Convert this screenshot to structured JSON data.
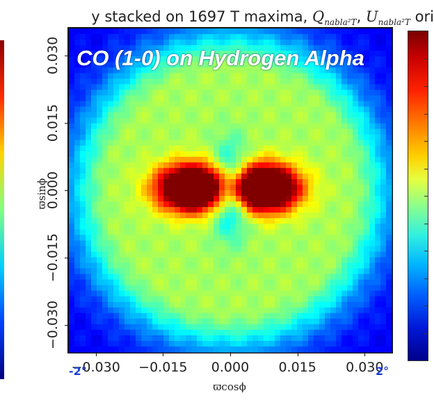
{
  "header": {
    "title_prefix": "y stacked on 1697 T maxima, ",
    "q_main": "Q",
    "q_sub": "nabla²T",
    "sep": ", ",
    "u_main": "U",
    "u_sub": "nabla²T",
    "title_suffix": " ori"
  },
  "overlay_title": "CO (1-0) on Hydrogen Alpha",
  "corner_labels": {
    "left": "-2°",
    "right": "2°"
  },
  "chart_data": {
    "type": "heatmap",
    "title": "y stacked on 1697 T maxima, Q_nabla²T, U_nabla²T ori",
    "xlabel": "ϖcosϕ",
    "ylabel": "ϖsinϕ",
    "xlim": [
      -0.036,
      0.036
    ],
    "ylim": [
      -0.036,
      0.036
    ],
    "xticks": [
      -0.03,
      -0.015,
      0.0,
      0.015,
      0.03
    ],
    "xtick_labels": [
      "−0.030",
      "−0.015",
      "0.000",
      "0.015",
      "0.030"
    ],
    "yticks": [
      -0.03,
      -0.015,
      0.0,
      0.015,
      0.03
    ],
    "ytick_labels": [
      "−0.030",
      "−0.015",
      "0.000",
      "0.015",
      "0.030"
    ],
    "colormap": "jet",
    "colorbar": "right",
    "features": [
      {
        "kind": "background",
        "value": 0.12
      },
      {
        "kind": "ring",
        "radius": 0.026,
        "width": 0.01,
        "value": 0.42
      },
      {
        "kind": "lobe",
        "x": -0.0085,
        "y": 0.0005,
        "sx": 0.0075,
        "sy": 0.005,
        "value": 0.95
      },
      {
        "kind": "lobe",
        "x": 0.0075,
        "y": 0.0005,
        "sx": 0.0075,
        "sy": 0.005,
        "value": 0.95
      },
      {
        "kind": "center_dip",
        "x": 0.0,
        "y": 0.0,
        "r": 0.004,
        "value": 0.5
      }
    ]
  }
}
